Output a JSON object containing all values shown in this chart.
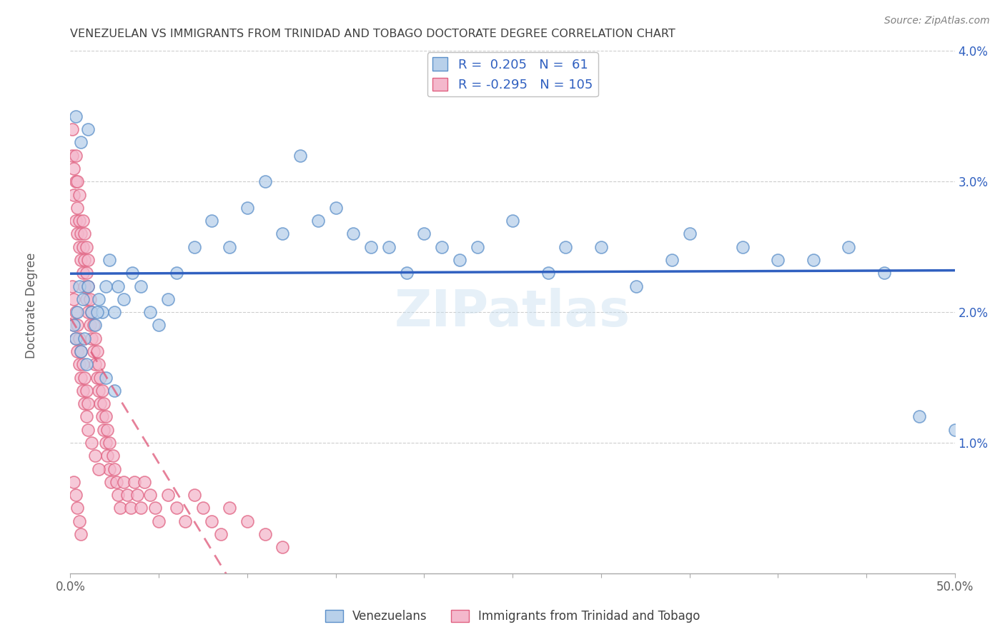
{
  "title": "VENEZUELAN VS IMMIGRANTS FROM TRINIDAD AND TOBAGO DOCTORATE DEGREE CORRELATION CHART",
  "source": "Source: ZipAtlas.com",
  "ylabel": "Doctorate Degree",
  "xlim": [
    0.0,
    0.5
  ],
  "ylim": [
    0.0,
    0.04
  ],
  "watermark": "ZIPatlas",
  "blue_R": 0.205,
  "blue_N": 61,
  "pink_R": -0.295,
  "pink_N": 105,
  "blue_fill": "#b8d0ea",
  "pink_fill": "#f4b8cc",
  "blue_edge": "#5b8fc9",
  "pink_edge": "#e06080",
  "blue_line": "#3060c0",
  "pink_line": "#e06080",
  "background_color": "#ffffff",
  "grid_color": "#c8c8c8",
  "title_color": "#404040",
  "legend_text_color": "#3060c0",
  "ytick_color": "#3060c0",
  "xtick_color": "#606060",
  "blue_points_x": [
    0.002,
    0.003,
    0.004,
    0.005,
    0.006,
    0.007,
    0.008,
    0.009,
    0.01,
    0.012,
    0.014,
    0.016,
    0.018,
    0.02,
    0.022,
    0.025,
    0.027,
    0.03,
    0.035,
    0.04,
    0.045,
    0.05,
    0.055,
    0.06,
    0.07,
    0.08,
    0.09,
    0.1,
    0.11,
    0.12,
    0.13,
    0.14,
    0.15,
    0.16,
    0.17,
    0.18,
    0.19,
    0.2,
    0.21,
    0.22,
    0.23,
    0.25,
    0.27,
    0.28,
    0.3,
    0.32,
    0.34,
    0.35,
    0.38,
    0.4,
    0.42,
    0.44,
    0.46,
    0.48,
    0.5,
    0.003,
    0.006,
    0.01,
    0.015,
    0.02,
    0.025
  ],
  "blue_points_y": [
    0.019,
    0.018,
    0.02,
    0.022,
    0.017,
    0.021,
    0.018,
    0.016,
    0.022,
    0.02,
    0.019,
    0.021,
    0.02,
    0.022,
    0.024,
    0.02,
    0.022,
    0.021,
    0.023,
    0.022,
    0.02,
    0.019,
    0.021,
    0.023,
    0.025,
    0.027,
    0.025,
    0.028,
    0.03,
    0.026,
    0.032,
    0.027,
    0.028,
    0.026,
    0.025,
    0.025,
    0.023,
    0.026,
    0.025,
    0.024,
    0.025,
    0.027,
    0.023,
    0.025,
    0.025,
    0.022,
    0.024,
    0.026,
    0.025,
    0.024,
    0.024,
    0.025,
    0.023,
    0.012,
    0.011,
    0.035,
    0.033,
    0.034,
    0.02,
    0.015,
    0.014
  ],
  "pink_points_x": [
    0.001,
    0.001,
    0.002,
    0.002,
    0.003,
    0.003,
    0.003,
    0.004,
    0.004,
    0.004,
    0.005,
    0.005,
    0.005,
    0.006,
    0.006,
    0.007,
    0.007,
    0.007,
    0.008,
    0.008,
    0.008,
    0.009,
    0.009,
    0.009,
    0.01,
    0.01,
    0.01,
    0.011,
    0.011,
    0.012,
    0.012,
    0.013,
    0.013,
    0.014,
    0.014,
    0.015,
    0.015,
    0.016,
    0.016,
    0.017,
    0.017,
    0.018,
    0.018,
    0.019,
    0.019,
    0.02,
    0.02,
    0.021,
    0.021,
    0.022,
    0.022,
    0.023,
    0.024,
    0.025,
    0.026,
    0.027,
    0.028,
    0.03,
    0.032,
    0.034,
    0.036,
    0.038,
    0.04,
    0.042,
    0.045,
    0.048,
    0.05,
    0.055,
    0.06,
    0.065,
    0.07,
    0.075,
    0.08,
    0.085,
    0.09,
    0.1,
    0.11,
    0.12,
    0.002,
    0.003,
    0.004,
    0.005,
    0.006,
    0.007,
    0.008,
    0.009,
    0.01,
    0.012,
    0.014,
    0.016,
    0.001,
    0.002,
    0.003,
    0.004,
    0.005,
    0.006,
    0.007,
    0.008,
    0.009,
    0.01,
    0.002,
    0.003,
    0.004,
    0.005,
    0.006
  ],
  "pink_points_y": [
    0.034,
    0.032,
    0.031,
    0.029,
    0.03,
    0.027,
    0.032,
    0.026,
    0.028,
    0.03,
    0.025,
    0.027,
    0.029,
    0.024,
    0.026,
    0.023,
    0.025,
    0.027,
    0.022,
    0.024,
    0.026,
    0.021,
    0.023,
    0.025,
    0.02,
    0.022,
    0.024,
    0.019,
    0.021,
    0.018,
    0.02,
    0.017,
    0.019,
    0.016,
    0.018,
    0.015,
    0.017,
    0.014,
    0.016,
    0.013,
    0.015,
    0.012,
    0.014,
    0.011,
    0.013,
    0.01,
    0.012,
    0.009,
    0.011,
    0.008,
    0.01,
    0.007,
    0.009,
    0.008,
    0.007,
    0.006,
    0.005,
    0.007,
    0.006,
    0.005,
    0.007,
    0.006,
    0.005,
    0.007,
    0.006,
    0.005,
    0.004,
    0.006,
    0.005,
    0.004,
    0.006,
    0.005,
    0.004,
    0.003,
    0.005,
    0.004,
    0.003,
    0.002,
    0.019,
    0.018,
    0.017,
    0.016,
    0.015,
    0.014,
    0.013,
    0.012,
    0.011,
    0.01,
    0.009,
    0.008,
    0.022,
    0.021,
    0.02,
    0.019,
    0.018,
    0.017,
    0.016,
    0.015,
    0.014,
    0.013,
    0.007,
    0.006,
    0.005,
    0.004,
    0.003
  ]
}
